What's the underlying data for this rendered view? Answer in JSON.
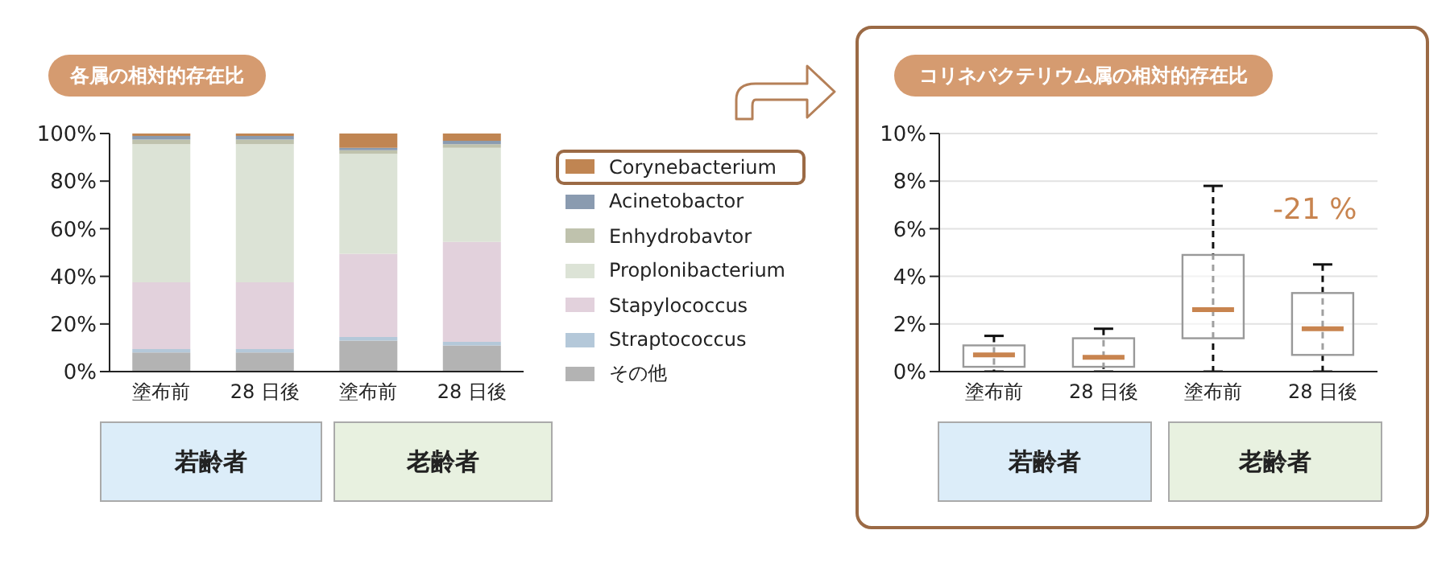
{
  "chart_data": [
    {
      "type": "bar",
      "title": "各属の相対的存在比",
      "stacked": true,
      "categories": [
        "塗布前",
        "28 日後",
        "塗布前",
        "28 日後"
      ],
      "series": [
        {
          "name": "その他",
          "color": "#b3b3b3",
          "values": [
            8,
            8,
            13,
            11
          ]
        },
        {
          "name": "Straptococcus",
          "color": "#b4c8d9",
          "values": [
            1.5,
            1.5,
            1.5,
            1.5
          ]
        },
        {
          "name": "Stapylococcus",
          "color": "#e2d1dc",
          "values": [
            28,
            28,
            35,
            42
          ]
        },
        {
          "name": "Proplonibacterium",
          "color": "#dce3d6",
          "values": [
            58,
            58,
            42,
            39.5
          ]
        },
        {
          "name": "Enhydrobavtor",
          "color": "#bfc2ad",
          "values": [
            2,
            2,
            1.5,
            1.5
          ]
        },
        {
          "name": "Acinetobactor",
          "color": "#8a9bb0",
          "values": [
            1.5,
            1.5,
            1,
            1.5
          ]
        },
        {
          "name": "Corynebacterium",
          "color": "#c08552",
          "values": [
            1,
            1,
            6,
            3
          ]
        }
      ],
      "ylim": [
        0,
        100
      ],
      "yticks": [
        {
          "value": 0,
          "label": "0%"
        },
        {
          "value": 20,
          "label": "20%"
        },
        {
          "value": 40,
          "label": "40%"
        },
        {
          "value": 60,
          "label": "60%"
        },
        {
          "value": 80,
          "label": "80%"
        },
        {
          "value": 100,
          "label": "100%"
        }
      ],
      "legend": "right",
      "annotations": [
        "若齢者",
        "老齢者"
      ]
    },
    {
      "type": "box",
      "title": "コリネバクテリウム属の相対的存在比",
      "categories": [
        "塗布前",
        "28 日後",
        "塗布前",
        "28 日後"
      ],
      "boxes": [
        {
          "low": 0,
          "q1": 0.2,
          "median": 0.7,
          "q3": 1.1,
          "high": 1.5
        },
        {
          "low": 0,
          "q1": 0.2,
          "median": 0.6,
          "q3": 1.4,
          "high": 1.8
        },
        {
          "low": 0,
          "q1": 1.4,
          "median": 2.6,
          "q3": 4.9,
          "high": 7.8
        },
        {
          "low": 0,
          "q1": 0.7,
          "median": 1.8,
          "q3": 3.3,
          "high": 4.5
        }
      ],
      "ylim": [
        0,
        10
      ],
      "yticks": [
        {
          "value": 0,
          "label": "0%"
        },
        {
          "value": 2,
          "label": "2%"
        },
        {
          "value": 4,
          "label": "4%"
        },
        {
          "value": 6,
          "label": "6%"
        },
        {
          "value": 8,
          "label": "8%"
        },
        {
          "value": 10,
          "label": "10%"
        }
      ],
      "grid": "y",
      "annotations": [
        "若齢者",
        "老齢者",
        "-21 %"
      ]
    }
  ]
}
